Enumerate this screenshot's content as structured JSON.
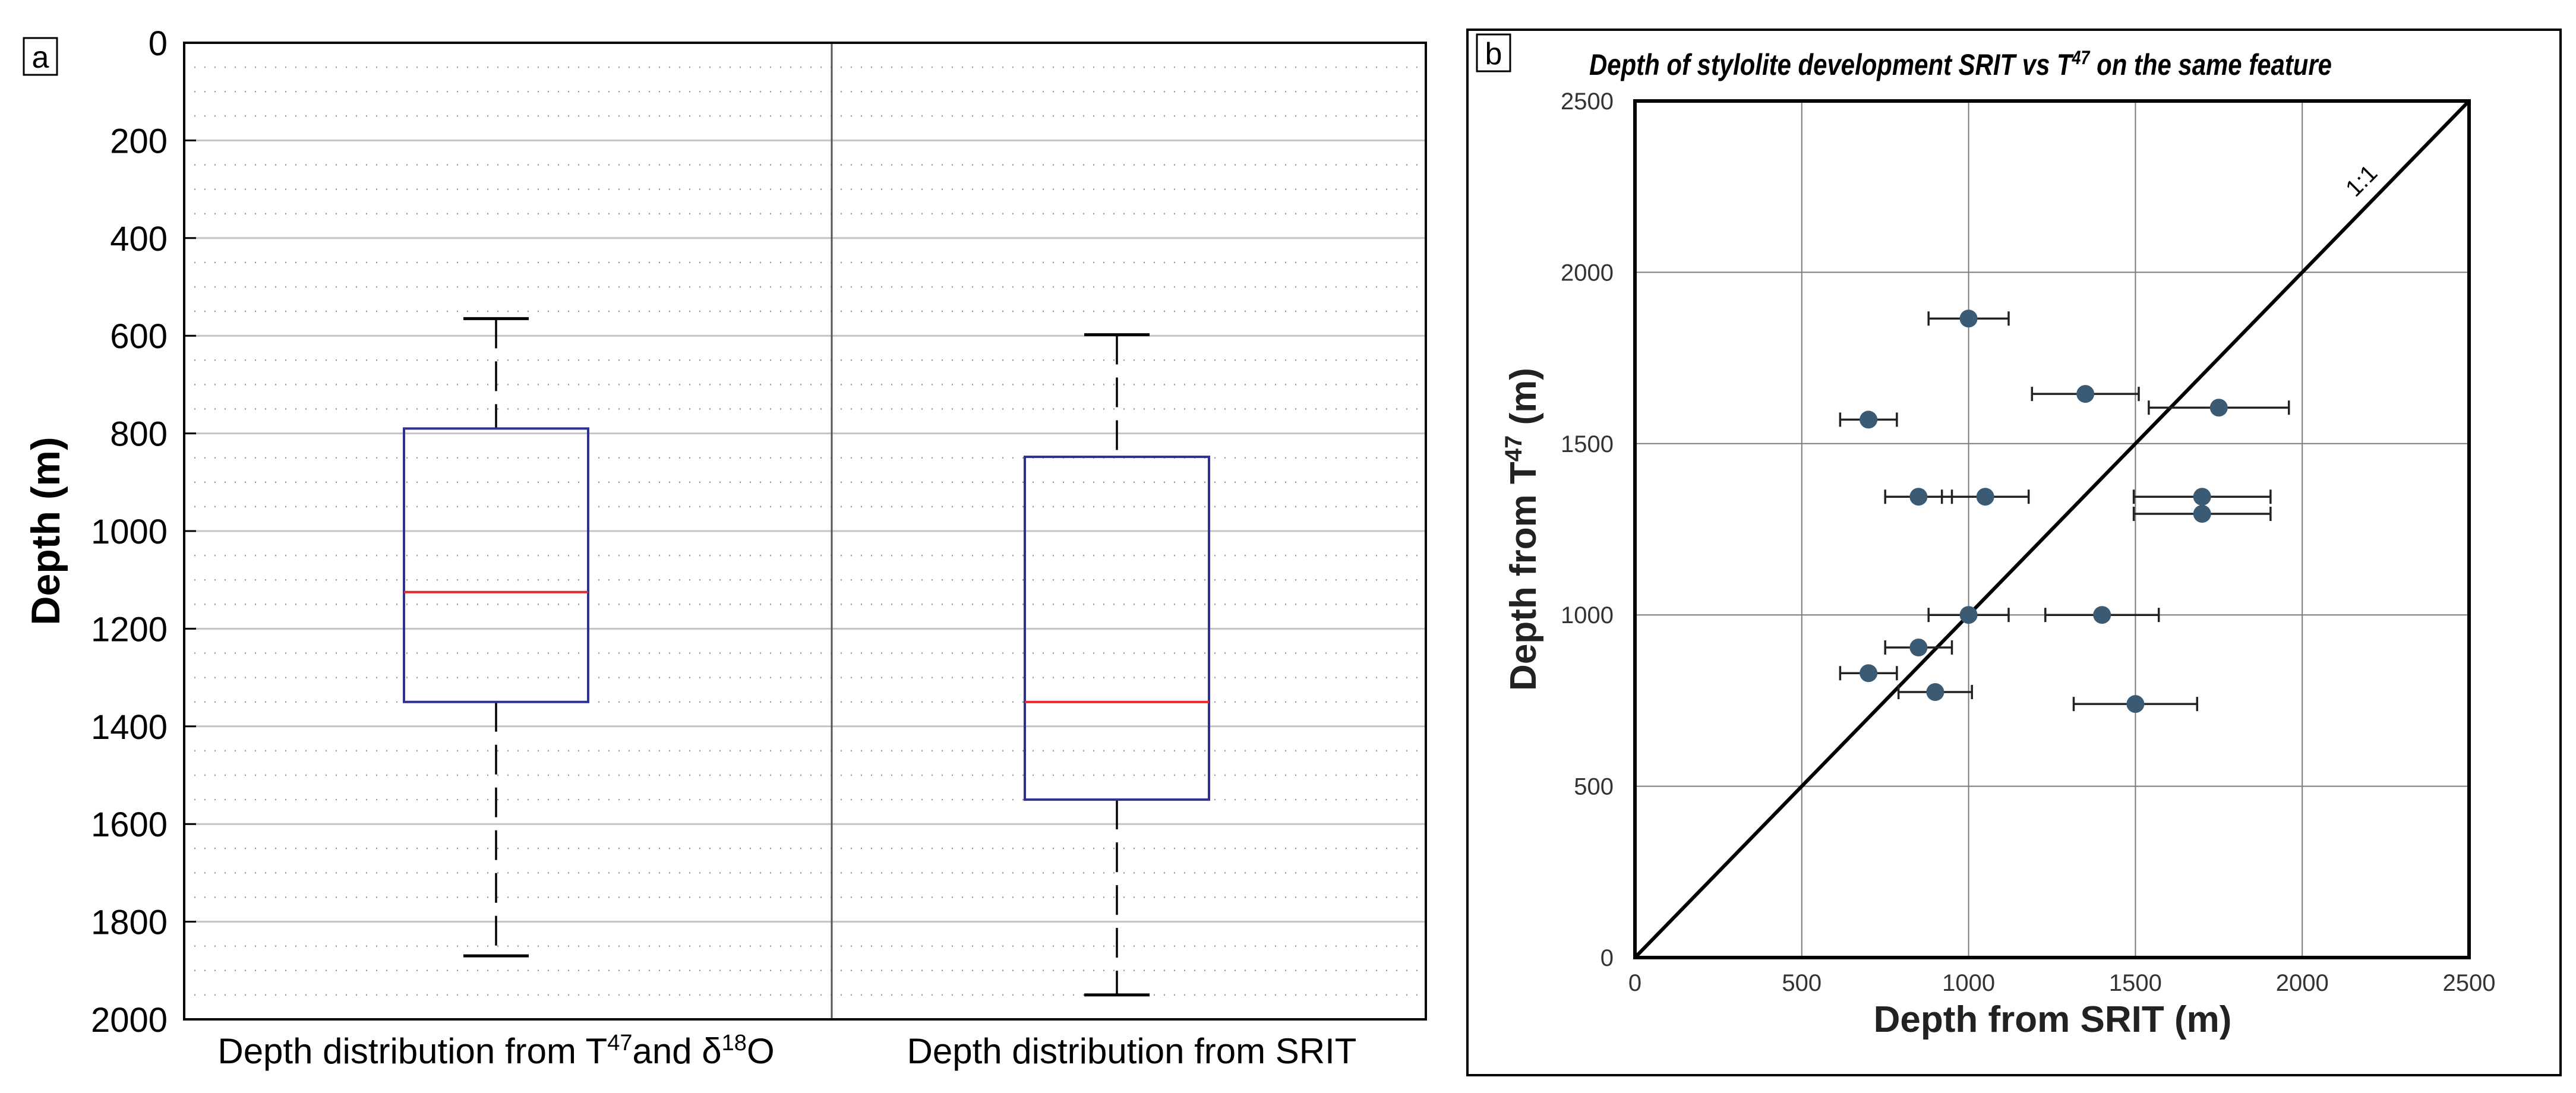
{
  "chart_data": [
    {
      "panel_label": "a",
      "type": "box",
      "ylabel": "Depth (m)",
      "ylim": [
        2000,
        0
      ],
      "y_major_ticks": [
        0,
        200,
        400,
        600,
        800,
        1000,
        1200,
        1400,
        1600,
        1800,
        2000
      ],
      "grid_major": true,
      "grid_minor": "dotted",
      "boxes": [
        {
          "label_parts": [
            "Depth distribution  from T",
            "47",
            "and δ",
            "18",
            "O"
          ],
          "whisker_low": 565,
          "q1": 790,
          "median": 1125,
          "q3": 1350,
          "whisker_high": 1870
        },
        {
          "label": "Depth distribution from SRIT",
          "whisker_low": 598,
          "q1": 848,
          "median": 1350,
          "q3": 1550,
          "whisker_high": 1950
        }
      ],
      "colors": {
        "box": "#2e3192",
        "median": "#e8272a",
        "whisker": "#000000"
      }
    },
    {
      "panel_label": "b",
      "type": "scatter",
      "title_parts": [
        "Depth of stylolite development SRIT vs T",
        "47",
        " on the same feature"
      ],
      "xlabel": "Depth from SRIT (m)",
      "ylabel_parts": [
        "Depth from T",
        "47",
        " (m)"
      ],
      "xlim": [
        0,
        2500
      ],
      "ylim": [
        0,
        2500
      ],
      "x_ticks": [
        0,
        500,
        1000,
        1500,
        2000,
        2500
      ],
      "y_ticks": [
        0,
        500,
        1000,
        1500,
        2000,
        2500
      ],
      "grid": true,
      "reference_line": {
        "label": "1:1",
        "from": [
          0,
          0
        ],
        "to": [
          2500,
          2500
        ]
      },
      "point_color": "#3b5a73",
      "points": [
        {
          "x": 1000,
          "y": 1865,
          "xerr": 120
        },
        {
          "x": 1350,
          "y": 1645,
          "xerr": 160
        },
        {
          "x": 1750,
          "y": 1605,
          "xerr": 210
        },
        {
          "x": 700,
          "y": 1570,
          "xerr": 85
        },
        {
          "x": 850,
          "y": 1345,
          "xerr": 100
        },
        {
          "x": 1050,
          "y": 1345,
          "xerr": 130
        },
        {
          "x": 1700,
          "y": 1345,
          "xerr": 205
        },
        {
          "x": 1700,
          "y": 1295,
          "xerr": 205
        },
        {
          "x": 1000,
          "y": 1000,
          "xerr": 120
        },
        {
          "x": 1400,
          "y": 1000,
          "xerr": 170
        },
        {
          "x": 850,
          "y": 905,
          "xerr": 100
        },
        {
          "x": 700,
          "y": 830,
          "xerr": 85
        },
        {
          "x": 900,
          "y": 775,
          "xerr": 110
        },
        {
          "x": 1500,
          "y": 740,
          "xerr": 185
        }
      ]
    }
  ]
}
